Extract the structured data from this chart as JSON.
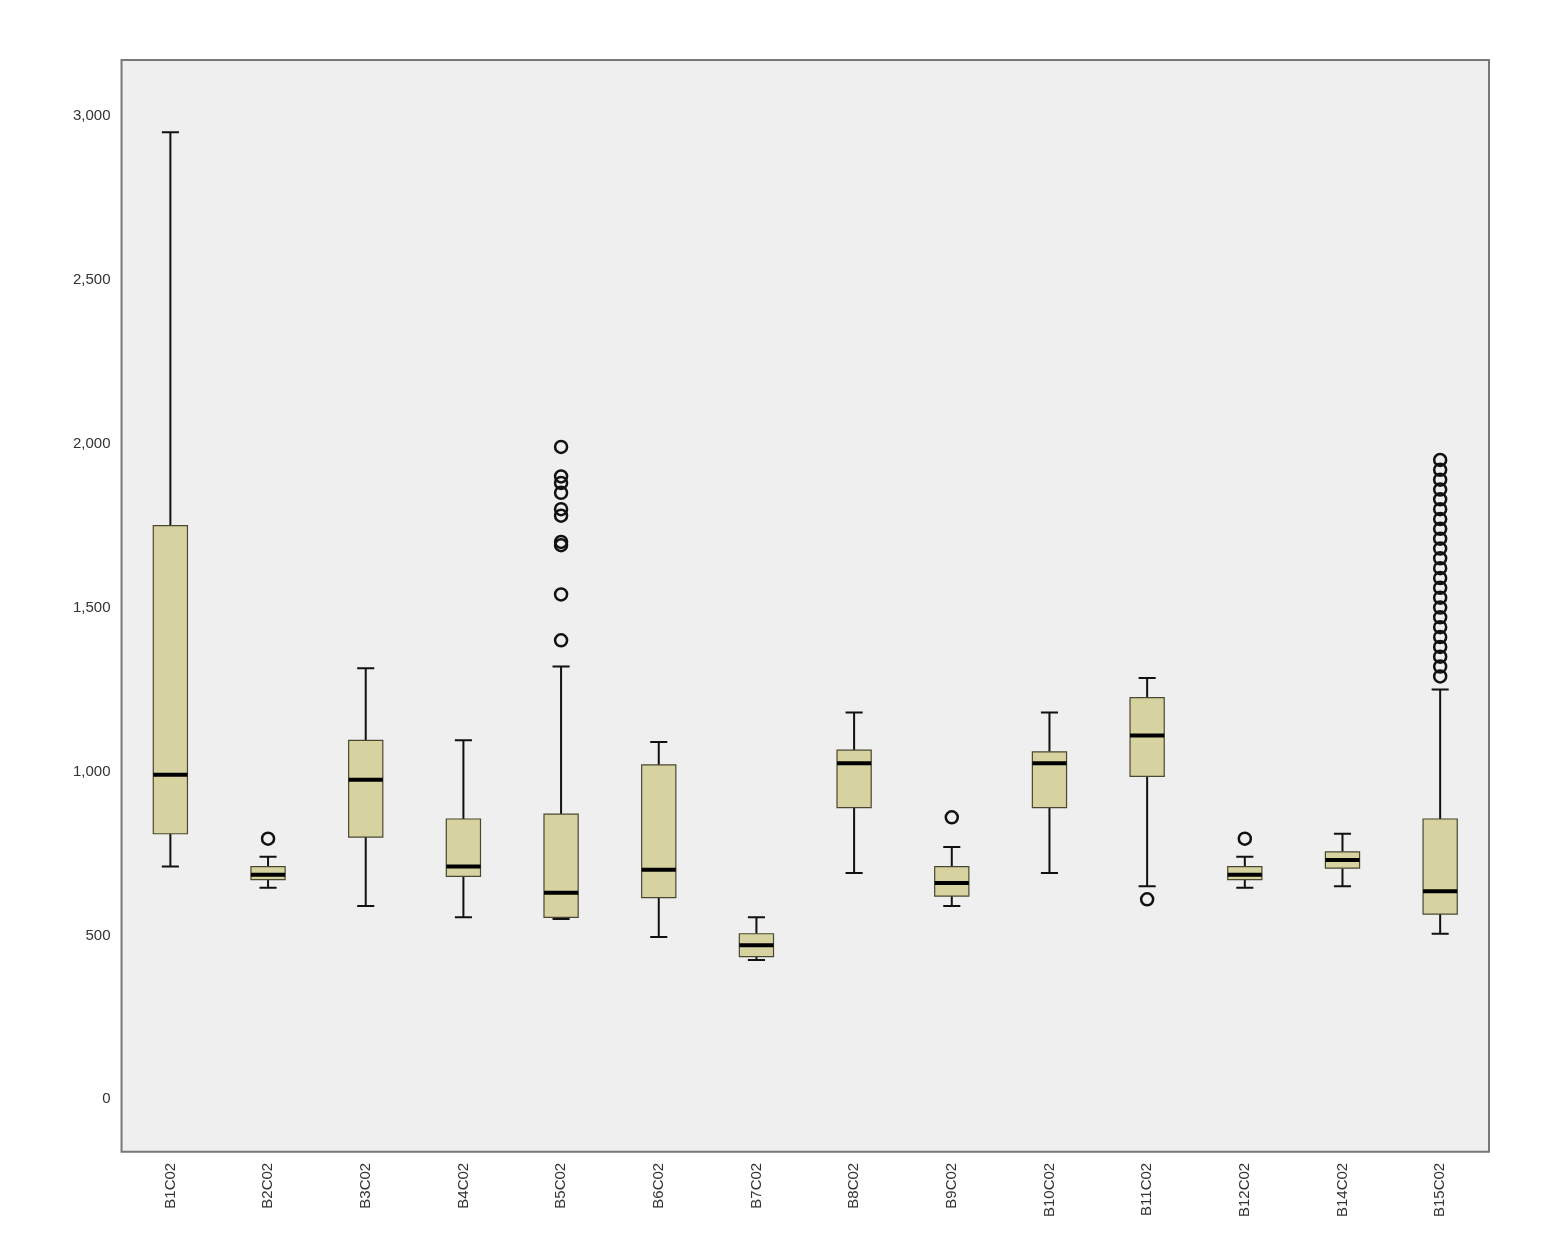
{
  "chart_data": {
    "type": "box",
    "color": "#d6d3a0",
    "categories": [
      "B1C02",
      "B2C02",
      "B3C02",
      "B4C02",
      "B5C02",
      "B6C02",
      "B7C02",
      "B8C02",
      "B9C02",
      "B10C02",
      "B11C02",
      "B12C02",
      "B14C02",
      "B15C02"
    ],
    "boxes": [
      {
        "low": 710,
        "q1": 810,
        "median": 990,
        "q3": 1750,
        "high": 2950
      },
      {
        "low": 645,
        "q1": 670,
        "median": 685,
        "q3": 710,
        "high": 740,
        "outliers": [
          795
        ]
      },
      {
        "low": 590,
        "q1": 800,
        "median": 975,
        "q3": 1095,
        "high": 1315
      },
      {
        "low": 555,
        "q1": 680,
        "median": 710,
        "q3": 855,
        "high": 1095
      },
      {
        "low": 550,
        "q1": 555,
        "median": 630,
        "q3": 870,
        "high": 1320,
        "outliers": [
          1400,
          1540,
          1690,
          1700,
          1780,
          1800,
          1850,
          1880,
          1900,
          1990
        ]
      },
      {
        "low": 495,
        "q1": 615,
        "median": 700,
        "q3": 1020,
        "high": 1090
      },
      {
        "low": 425,
        "q1": 435,
        "median": 470,
        "q3": 505,
        "high": 555
      },
      {
        "low": 690,
        "q1": 890,
        "median": 1025,
        "q3": 1065,
        "high": 1180
      },
      {
        "low": 590,
        "q1": 620,
        "median": 660,
        "q3": 710,
        "high": 770,
        "outliers": [
          860
        ]
      },
      {
        "low": 690,
        "q1": 890,
        "median": 1025,
        "q3": 1060,
        "high": 1180
      },
      {
        "low": 650,
        "q1": 985,
        "median": 1110,
        "q3": 1225,
        "high": 1285,
        "outliers": [
          610
        ]
      },
      {
        "low": 645,
        "q1": 670,
        "median": 685,
        "q3": 710,
        "high": 740,
        "outliers": [
          795
        ]
      },
      {
        "low": 650,
        "q1": 705,
        "median": 730,
        "q3": 755,
        "high": 810
      },
      {
        "low": 505,
        "q1": 565,
        "median": 635,
        "q3": 855,
        "high": 1250,
        "outliers": [
          1290,
          1320,
          1350,
          1380,
          1410,
          1440,
          1470,
          1500,
          1530,
          1560,
          1590,
          1620,
          1650,
          1680,
          1710,
          1740,
          1770,
          1800,
          1830,
          1860,
          1890,
          1920,
          1950
        ]
      }
    ],
    "ylim": [
      -160,
      3170
    ],
    "yticks": [
      {
        "value": 0,
        "label": "0"
      },
      {
        "value": 500,
        "label": "500"
      },
      {
        "value": 1000,
        "label": "1,000"
      },
      {
        "value": 1500,
        "label": "1,500"
      },
      {
        "value": 2000,
        "label": "2,000"
      },
      {
        "value": 2500,
        "label": "2,500"
      },
      {
        "value": 3000,
        "label": "3,000"
      }
    ]
  }
}
